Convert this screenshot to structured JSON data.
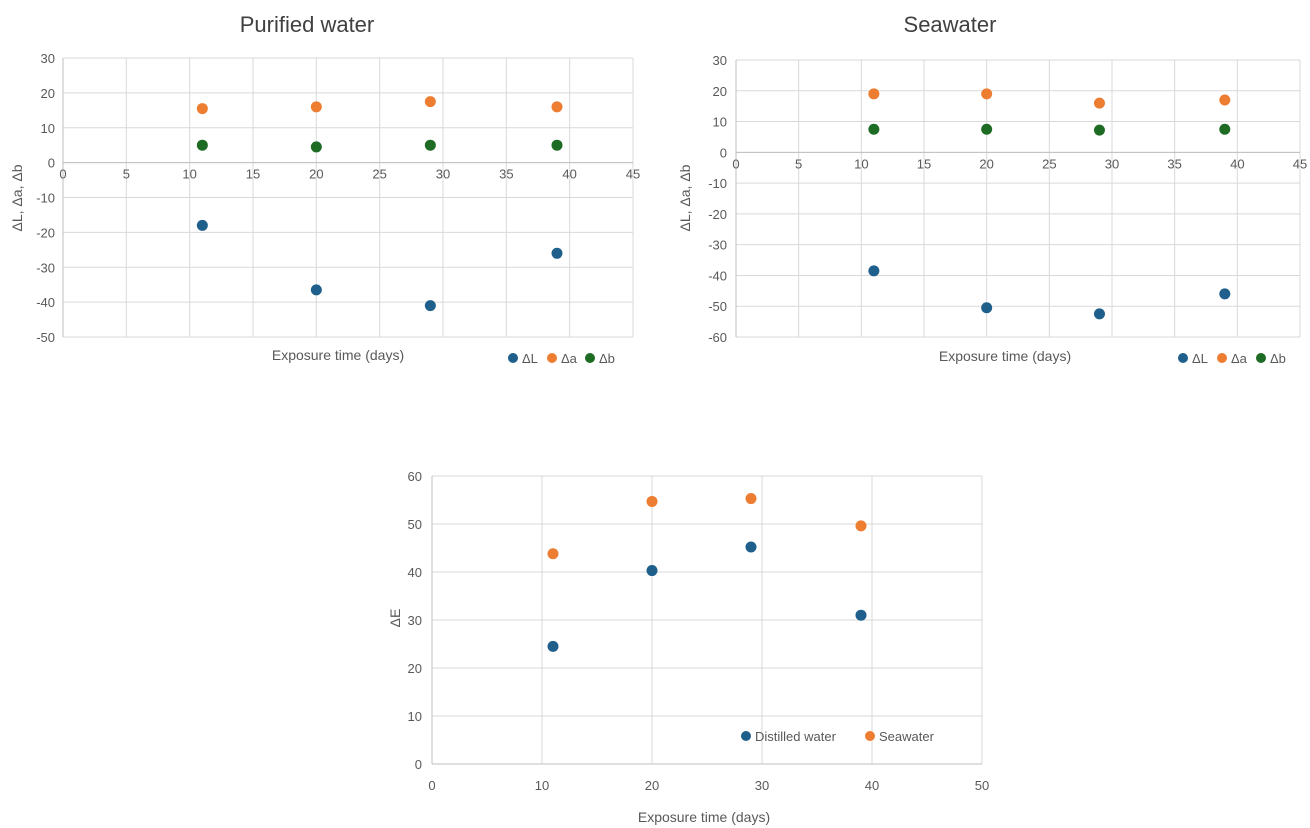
{
  "chart_data": [
    {
      "type": "scatter",
      "title": "Purified water",
      "xlabel": "Exposure time (days)",
      "ylabel": "ΔL, Δa, Δb",
      "xlim": [
        0,
        45
      ],
      "ylim": [
        -50,
        30
      ],
      "x_ticks": [
        0,
        5,
        10,
        15,
        20,
        25,
        30,
        35,
        40,
        45
      ],
      "y_ticks": [
        30,
        20,
        10,
        0,
        -10,
        -20,
        -30,
        -40,
        -50
      ],
      "grid": true,
      "legend_placement": "bottom-right",
      "series": [
        {
          "name": "ΔL",
          "color": "#1f5f8b",
          "points": [
            [
              11,
              -18
            ],
            [
              20,
              -36.5
            ],
            [
              29,
              -41
            ],
            [
              39,
              -26
            ]
          ]
        },
        {
          "name": "Δa",
          "color": "#ed7d31",
          "points": [
            [
              11,
              15.5
            ],
            [
              20,
              16
            ],
            [
              29,
              17.5
            ],
            [
              39,
              16
            ]
          ]
        },
        {
          "name": "Δb",
          "color": "#1e6b24",
          "points": [
            [
              11,
              5
            ],
            [
              20,
              4.5
            ],
            [
              29,
              5
            ],
            [
              39,
              5
            ]
          ]
        }
      ]
    },
    {
      "type": "scatter",
      "title": "Seawater",
      "xlabel": "Exposure time (days)",
      "ylabel": "ΔL, Δa, Δb",
      "xlim": [
        0,
        45
      ],
      "ylim": [
        -60,
        30
      ],
      "x_ticks": [
        0,
        5,
        10,
        15,
        20,
        25,
        30,
        35,
        40,
        45
      ],
      "y_ticks": [
        30,
        20,
        10,
        0,
        -10,
        -20,
        -30,
        -40,
        -50,
        -60
      ],
      "grid": true,
      "legend_placement": "bottom-right",
      "series": [
        {
          "name": "ΔL",
          "color": "#1f5f8b",
          "points": [
            [
              11,
              -38.5
            ],
            [
              20,
              -50.5
            ],
            [
              29,
              -52.5
            ],
            [
              39,
              -46
            ]
          ]
        },
        {
          "name": "Δa",
          "color": "#ed7d31",
          "points": [
            [
              11,
              19
            ],
            [
              20,
              19
            ],
            [
              29,
              16
            ],
            [
              39,
              17
            ]
          ]
        },
        {
          "name": "Δb",
          "color": "#1e6b24",
          "points": [
            [
              11,
              7.5
            ],
            [
              20,
              7.5
            ],
            [
              29,
              7.2
            ],
            [
              39,
              7.5
            ]
          ]
        }
      ]
    },
    {
      "type": "scatter",
      "title": "",
      "xlabel": "Exposure time (days)",
      "ylabel": "ΔE",
      "xlim": [
        0,
        50
      ],
      "ylim": [
        0,
        60
      ],
      "x_ticks": [
        0,
        10,
        20,
        30,
        40,
        50
      ],
      "y_ticks": [
        60,
        50,
        40,
        30,
        20,
        10,
        0
      ],
      "grid": true,
      "legend_placement": "bottom-right",
      "series": [
        {
          "name": "Distilled water",
          "color": "#1f5f8b",
          "points": [
            [
              11,
              24.5
            ],
            [
              20,
              40.3
            ],
            [
              29,
              45.2
            ],
            [
              39,
              31
            ]
          ]
        },
        {
          "name": "Seawater",
          "color": "#ed7d31",
          "points": [
            [
              11,
              43.8
            ],
            [
              20,
              54.7
            ],
            [
              29,
              55.3
            ],
            [
              39,
              49.6
            ]
          ]
        }
      ]
    }
  ]
}
